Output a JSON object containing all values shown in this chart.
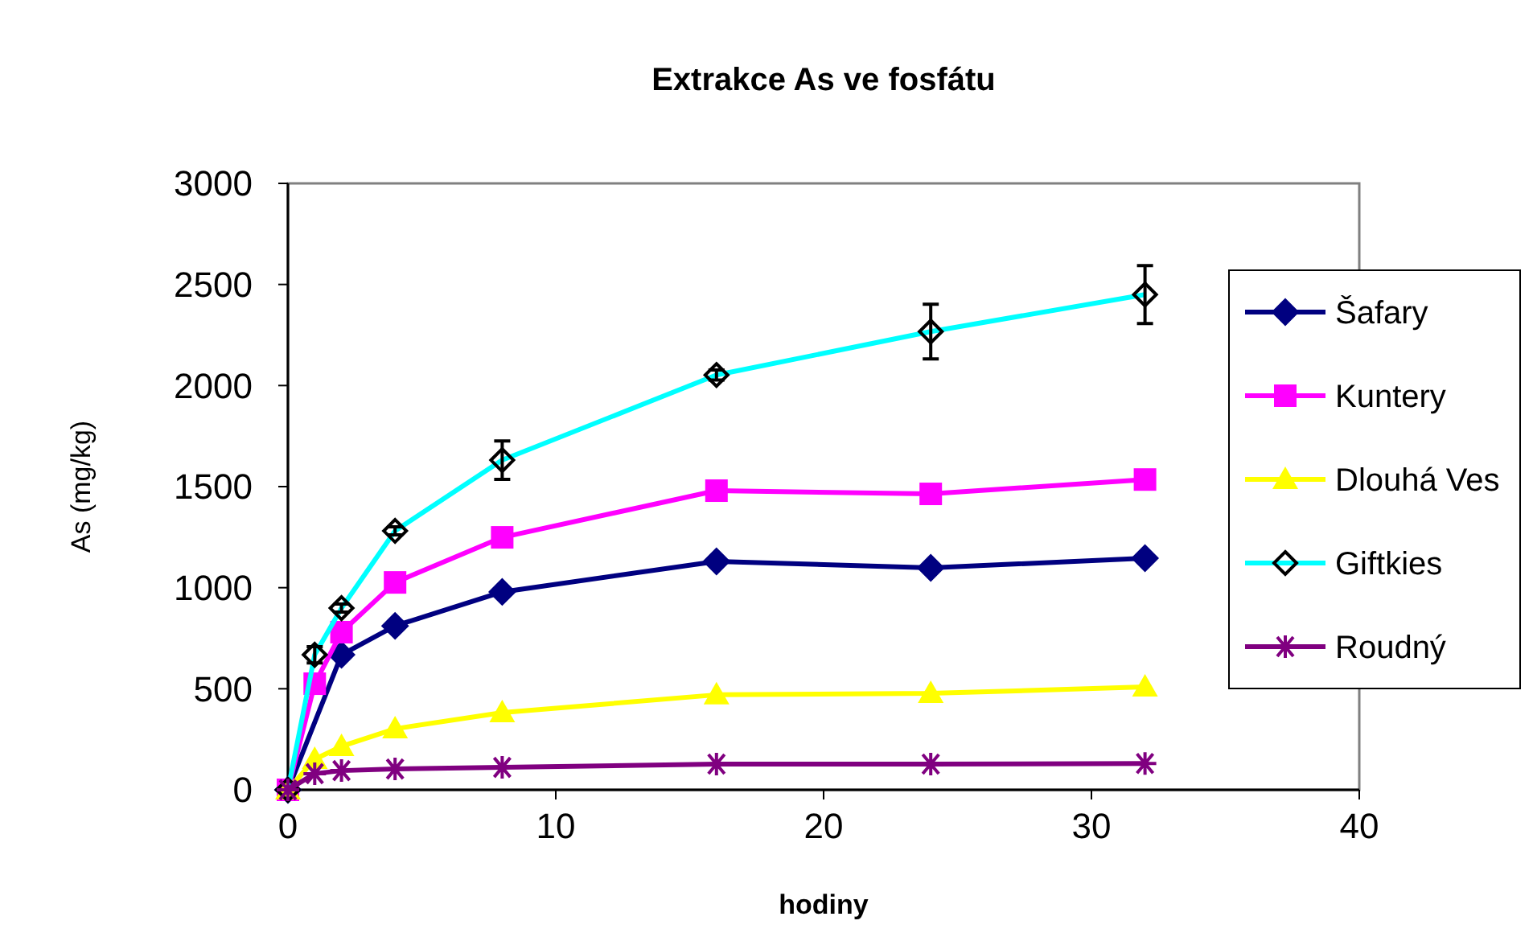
{
  "chart_data": {
    "type": "line",
    "title": "Extrakce As ve fosfátu",
    "xlabel": "hodiny",
    "ylabel": "As (mg/kg)",
    "x": [
      0,
      1,
      2,
      4,
      8,
      16,
      24,
      32
    ],
    "xlim": [
      0,
      40
    ],
    "xticks": [
      0,
      10,
      20,
      30,
      40
    ],
    "ylim": [
      0,
      3000
    ],
    "yticks": [
      0,
      500,
      1000,
      1500,
      2000,
      2500,
      3000
    ],
    "grid": false,
    "legend": "right",
    "series": [
      {
        "name": "Šafary",
        "color": "#000080",
        "marker": "diamond",
        "values": [
          0,
          null,
          668,
          811,
          979,
          1130,
          1098,
          1146
        ]
      },
      {
        "name": "Kuntery",
        "color": "#ff00ff",
        "marker": "square",
        "values": [
          0,
          525,
          780,
          1026,
          1249,
          1480,
          1464,
          1535
        ]
      },
      {
        "name": "Dlouhá Ves",
        "color": "#ffff00",
        "marker": "triangle",
        "values": [
          0,
          151,
          215,
          302,
          382,
          470,
          477,
          509
        ]
      },
      {
        "name": "Giftkies",
        "color": "#00ffff",
        "marker": "diamond-open",
        "values": [
          0,
          668,
          899,
          1281,
          1631,
          2052,
          2267,
          2450
        ],
        "errors": [
          null,
          40,
          20,
          20,
          95,
          25,
          135,
          143
        ]
      },
      {
        "name": "Roudný",
        "color": "#800080",
        "marker": "cross",
        "values": [
          0,
          80,
          95,
          103,
          111,
          127,
          127,
          130
        ]
      }
    ]
  }
}
